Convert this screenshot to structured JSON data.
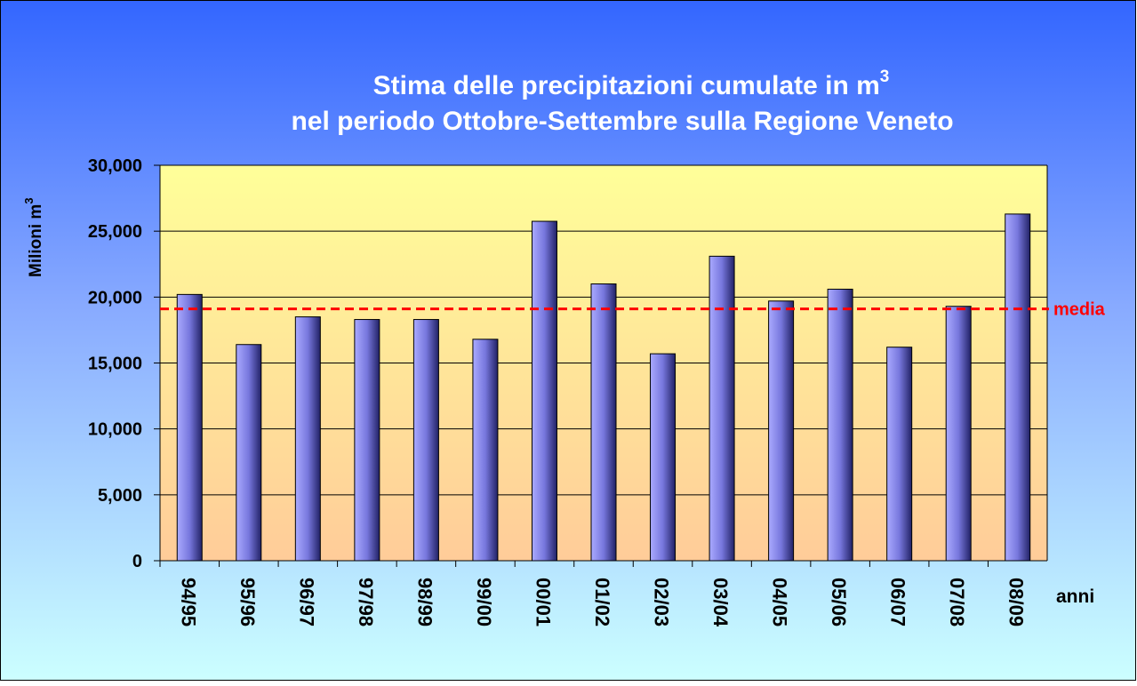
{
  "chart_data": {
    "type": "bar",
    "title": "Stima delle precipitazioni cumulate in m",
    "title_superscript": "3",
    "subtitle": "nel periodo Ottobre-Settembre sulla  Regione Veneto",
    "y_label": "Milioni  m",
    "y_label_superscript": "3",
    "x_label": "anni",
    "categories": [
      "94/95",
      "95/96",
      "96/97",
      "97/98",
      "98/99",
      "99/00",
      "00/01",
      "01/02",
      "02/03",
      "03/04",
      "04/05",
      "05/06",
      "06/07",
      "07/08",
      "08/09"
    ],
    "values": [
      20200,
      16400,
      18500,
      18300,
      18300,
      16800,
      25750,
      21000,
      15700,
      23100,
      19700,
      20600,
      16200,
      19300,
      26300
    ],
    "color": "#6666cc",
    "ylim": [
      0,
      30000
    ],
    "yticks": [
      0,
      {
        "value": 5000,
        "label": "5,000"
      },
      {
        "value": 10000,
        "label": "10,000"
      },
      {
        "value": 15000,
        "label": "15,000"
      },
      {
        "value": 20000,
        "label": "20,000"
      },
      {
        "value": 25000,
        "label": "25,000"
      },
      {
        "value": 30000,
        "label": "30,000"
      }
    ],
    "grid": true,
    "reference_line": {
      "label": "media",
      "value": 19100,
      "color": "#ff0000"
    }
  }
}
